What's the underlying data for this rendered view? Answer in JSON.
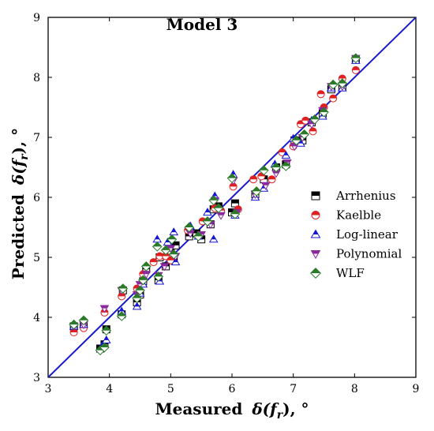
{
  "chart_data": {
    "type": "scatter",
    "title": "Model 3",
    "xlabel": "Measured δ(f_r), °",
    "xlabel_main": "Measured",
    "xlabel_sym": "δ(f",
    "xlabel_sub": "r",
    "xlabel_tail": "), °",
    "ylabel": "Predicted δ(f_r), °",
    "ylabel_main": "Predicted",
    "ylabel_sym": "δ(f",
    "ylabel_sub": "r",
    "ylabel_tail": "), °",
    "xlim": [
      3,
      9
    ],
    "ylim": [
      3,
      9
    ],
    "xticks": [
      "3",
      "4",
      "5",
      "6",
      "7",
      "8",
      "9"
    ],
    "yticks": [
      "3",
      "4",
      "5",
      "6",
      "7",
      "8",
      "9"
    ],
    "grid": false,
    "legend_position": "right",
    "reference_line": {
      "x": [
        3,
        9
      ],
      "y": [
        3,
        9
      ],
      "color": "#1a1acc"
    },
    "series": [
      {
        "name": "Arrhenius",
        "marker": "square-half",
        "color": "#000000",
        "x": [
          3.42,
          3.58,
          3.85,
          3.92,
          3.95,
          4.2,
          4.22,
          4.45,
          4.5,
          4.55,
          4.6,
          4.8,
          4.82,
          4.92,
          5.0,
          5.05,
          5.08,
          5.3,
          5.42,
          5.5,
          5.65,
          5.7,
          5.78,
          6.0,
          6.05,
          6.38,
          6.52,
          6.72,
          6.88,
          7.02,
          7.15,
          7.3,
          7.48,
          7.62,
          7.8,
          8.02
        ],
        "y": [
          3.85,
          3.9,
          3.48,
          3.55,
          3.8,
          4.05,
          4.45,
          4.25,
          4.38,
          4.6,
          4.8,
          4.62,
          5.0,
          4.85,
          5.1,
          4.95,
          5.2,
          5.35,
          5.4,
          5.3,
          5.55,
          5.8,
          5.85,
          5.75,
          5.9,
          6.05,
          6.3,
          6.5,
          6.55,
          6.95,
          6.95,
          7.25,
          7.4,
          7.8,
          7.85,
          8.3
        ]
      },
      {
        "name": "Kaelble",
        "marker": "circle-half",
        "color": "#e02020",
        "x": [
          3.42,
          3.58,
          3.92,
          4.2,
          4.45,
          4.55,
          4.72,
          4.82,
          4.92,
          5.0,
          5.28,
          5.52,
          5.72,
          5.82,
          6.02,
          6.1,
          6.35,
          6.48,
          6.65,
          6.82,
          7.0,
          7.12,
          7.2,
          7.32,
          7.45,
          7.5,
          7.65,
          7.8,
          8.02
        ],
        "y": [
          3.75,
          3.82,
          4.08,
          4.35,
          4.48,
          4.72,
          4.92,
          5.02,
          5.02,
          4.95,
          5.45,
          5.6,
          5.82,
          5.78,
          6.18,
          5.8,
          6.3,
          6.35,
          6.3,
          6.75,
          6.85,
          7.22,
          7.28,
          7.1,
          7.72,
          7.5,
          7.65,
          7.98,
          8.12
        ]
      },
      {
        "name": "Log-linear",
        "marker": "triangle-up",
        "color": "#1515d8",
        "x": [
          3.42,
          3.58,
          3.88,
          3.95,
          4.2,
          4.45,
          4.5,
          4.55,
          4.78,
          4.82,
          4.95,
          5.05,
          5.08,
          5.32,
          5.45,
          5.6,
          5.7,
          5.72,
          6.02,
          6.05,
          6.38,
          6.52,
          6.7,
          6.88,
          7.0,
          7.12,
          7.3,
          7.48,
          7.62,
          7.8,
          8.02
        ],
        "y": [
          3.85,
          3.88,
          3.52,
          3.62,
          4.1,
          4.18,
          4.4,
          4.55,
          5.3,
          4.6,
          5.25,
          5.42,
          4.92,
          5.52,
          5.35,
          5.75,
          5.3,
          6.02,
          6.38,
          5.7,
          6.0,
          6.15,
          6.55,
          6.7,
          6.98,
          6.9,
          7.28,
          7.35,
          7.82,
          7.82,
          8.28
        ]
      },
      {
        "name": "Polynomial",
        "marker": "triangle-down",
        "color": "#8a2a9e",
        "x": [
          3.42,
          3.58,
          3.92,
          4.2,
          4.45,
          4.5,
          4.6,
          4.8,
          4.9,
          5.0,
          5.08,
          5.32,
          5.5,
          5.65,
          5.72,
          5.82,
          6.02,
          6.08,
          6.38,
          6.55,
          6.72,
          6.9,
          7.02,
          7.15,
          7.3,
          7.48,
          7.62,
          7.8,
          8.02
        ],
        "y": [
          3.85,
          3.88,
          4.15,
          4.45,
          4.38,
          4.55,
          4.72,
          4.7,
          4.85,
          5.15,
          5.02,
          5.4,
          5.38,
          5.55,
          5.95,
          5.7,
          6.28,
          5.75,
          6.05,
          6.2,
          6.4,
          6.58,
          6.85,
          7.0,
          7.22,
          7.45,
          7.85,
          7.85,
          8.32
        ]
      },
      {
        "name": "WLF",
        "marker": "diamond-half",
        "color": "#2a7a2a",
        "x": [
          3.42,
          3.58,
          3.85,
          3.92,
          3.95,
          4.2,
          4.22,
          4.45,
          4.5,
          4.55,
          4.6,
          4.78,
          4.8,
          4.92,
          5.02,
          5.05,
          5.3,
          5.45,
          5.6,
          5.7,
          5.78,
          6.0,
          6.05,
          6.4,
          6.52,
          6.72,
          6.88,
          7.05,
          7.18,
          7.35,
          7.5,
          7.65,
          7.8,
          8.02
        ],
        "y": [
          3.88,
          3.95,
          3.45,
          3.5,
          3.78,
          4.02,
          4.48,
          4.32,
          4.45,
          4.62,
          4.85,
          5.18,
          4.68,
          5.12,
          5.3,
          5.05,
          5.5,
          5.35,
          5.6,
          5.95,
          5.82,
          6.32,
          5.72,
          6.1,
          6.45,
          6.5,
          6.52,
          6.95,
          7.05,
          7.3,
          7.42,
          7.88,
          7.9,
          8.32
        ]
      }
    ]
  }
}
